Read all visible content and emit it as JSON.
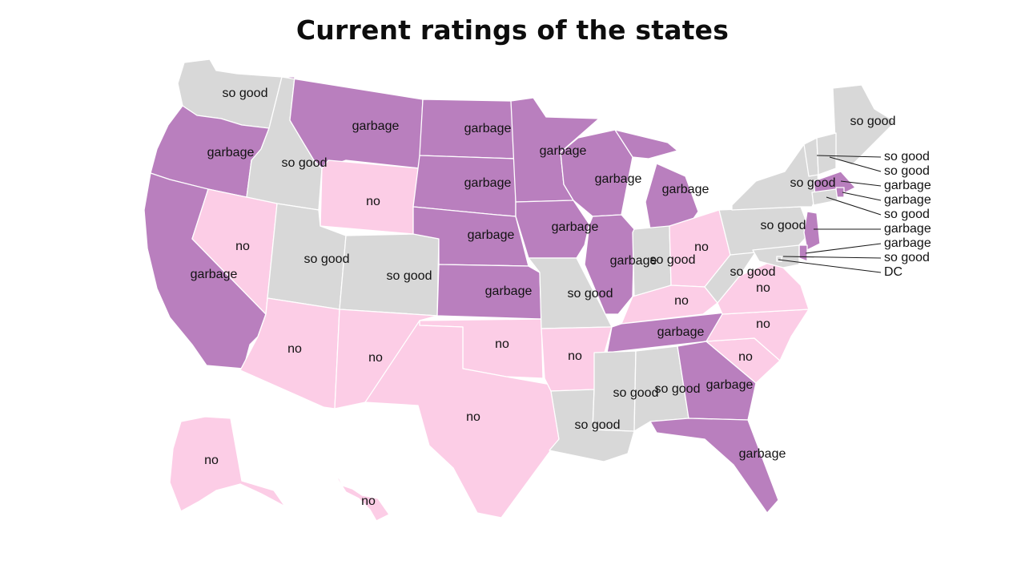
{
  "title": "Current ratings of the states",
  "colors": {
    "garbage": "#b97fbe",
    "no": "#fccde6",
    "so good": "#d8d8d8"
  },
  "states": {
    "WA": "so good",
    "OR": "garbage",
    "CA": "garbage",
    "ID": "so good",
    "NV": "no",
    "MT": "garbage",
    "WY": "no",
    "UT": "so good",
    "CO": "so good",
    "AZ": "no",
    "NM": "no",
    "ND": "garbage",
    "SD": "garbage",
    "NE": "garbage",
    "KS": "garbage",
    "OK": "no",
    "TX": "no",
    "MN": "garbage",
    "IA": "garbage",
    "MO": "so good",
    "AR": "no",
    "LA": "so good",
    "WI": "garbage",
    "IL": "garbage",
    "MI": "garbage",
    "IN": "so good",
    "OH": "no",
    "KY": "no",
    "TN": "garbage",
    "MS": "so good",
    "AL": "so good",
    "GA": "garbage",
    "FL": "garbage",
    "SC": "no",
    "NC": "no",
    "VA": "no",
    "WV": "so good",
    "PA": "so good",
    "NY": "so good",
    "ME": "so good",
    "VT": "so good",
    "NH": "so good",
    "MA": "garbage",
    "RI": "garbage",
    "CT": "so good",
    "NJ": "garbage",
    "DE": "garbage",
    "MD": "so good",
    "DC": "DC",
    "AK": "no",
    "HI": "no"
  },
  "callouts": [
    {
      "state": "VT",
      "text": "so good"
    },
    {
      "state": "NH",
      "text": "so good"
    },
    {
      "state": "MA",
      "text": "garbage"
    },
    {
      "state": "RI",
      "text": "garbage"
    },
    {
      "state": "CT",
      "text": "so good"
    },
    {
      "state": "NJ",
      "text": "garbage"
    },
    {
      "state": "DE",
      "text": "garbage"
    },
    {
      "state": "MD",
      "text": "so good"
    },
    {
      "state": "DC",
      "text": "DC"
    }
  ]
}
